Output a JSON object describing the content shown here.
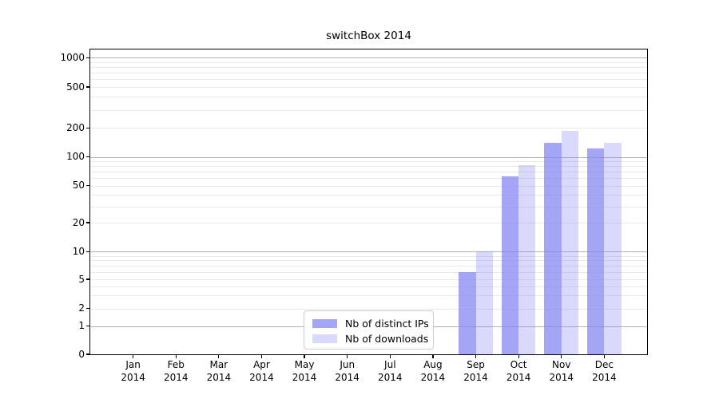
{
  "title": "switchBox 2014",
  "colors": {
    "bar_base": "#8282f2",
    "bar_dark_fill": "rgba(130,130,242,0.72)",
    "bar_light_fill": "rgba(130,130,242,0.30)",
    "grid_major": "#b3b3b3",
    "grid_minor": "#e9e9e9",
    "axis_spine": "#000000",
    "legend_border": "#cccccc"
  },
  "chart_data": {
    "type": "bar",
    "title": "switchBox 2014",
    "categories": [
      "Jan 2014",
      "Feb 2014",
      "Mar 2014",
      "Apr 2014",
      "May 2014",
      "Jun 2014",
      "Jul 2014",
      "Aug 2014",
      "Sep 2014",
      "Oct 2014",
      "Nov 2014",
      "Dec 2014"
    ],
    "series": [
      {
        "name": "Nb of distinct IPs",
        "color": "rgba(130,130,242,0.72)",
        "values": [
          0,
          0,
          0,
          0,
          0,
          0,
          0,
          0,
          6,
          63,
          140,
          122
        ]
      },
      {
        "name": "Nb of downloads",
        "color": "rgba(130,130,242,0.30)",
        "values": [
          0,
          0,
          0,
          0,
          0,
          0,
          0,
          0,
          10,
          82,
          185,
          140
        ]
      }
    ],
    "xlabel": "",
    "ylabel": "",
    "y_axis": {
      "scale": "symlog",
      "tick_labels": [
        0,
        1,
        2,
        5,
        10,
        20,
        50,
        100,
        200,
        500,
        1000
      ],
      "major_gridlines": [
        1,
        10,
        100,
        1000
      ],
      "range": [
        0,
        1213
      ]
    },
    "grid": "horizontal major + log minor gridlines",
    "legend": {
      "position": "lower center",
      "entries": [
        "Nb of distinct IPs",
        "Nb of downloads"
      ]
    }
  }
}
